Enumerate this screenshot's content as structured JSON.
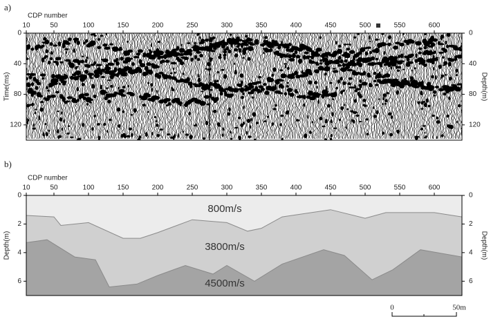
{
  "chart_data": [
    {
      "type": "seismic",
      "panel_label": "a)",
      "x_label": "CDP number",
      "y_label": "Time(ms)",
      "y2_label": "Depth(m)",
      "xlim": [
        10,
        640
      ],
      "xticks": [
        10,
        50,
        100,
        150,
        200,
        250,
        300,
        350,
        400,
        450,
        500,
        550,
        600
      ],
      "ylim": [
        0,
        140
      ],
      "yticks": [
        0,
        40,
        80,
        120
      ],
      "y2lim": [
        0,
        140
      ],
      "y2ticks": [
        0,
        40,
        80,
        120
      ]
    },
    {
      "type": "layers",
      "panel_label": "b)",
      "x_label": "CDP number",
      "y_label": "Depth(m)",
      "y2_label": "Depth(m)",
      "xlim": [
        10,
        640
      ],
      "xticks": [
        10,
        50,
        100,
        150,
        200,
        250,
        300,
        350,
        400,
        450,
        500,
        550,
        600
      ],
      "ylim": [
        7,
        0
      ],
      "yticks": [
        0,
        2,
        4,
        6
      ],
      "y2lim": [
        7,
        0
      ],
      "y2ticks": [
        0,
        2,
        4,
        6
      ],
      "colors": [
        "#ececec",
        "#d0d0d0",
        "#a4a4a4"
      ],
      "annotations": [
        "800m/s",
        "3800m/s",
        "4500m/s"
      ],
      "series": [
        {
          "color": "#8a8a8a",
          "x": [
            10,
            50,
            60,
            100,
            150,
            175,
            200,
            250,
            300,
            330,
            350,
            380,
            450,
            500,
            530,
            600,
            640
          ],
          "values": [
            1.4,
            1.5,
            2.1,
            1.9,
            3.0,
            3.0,
            2.6,
            1.7,
            1.9,
            2.5,
            2.3,
            1.5,
            1.0,
            1.6,
            1.2,
            1.2,
            1.5
          ]
        },
        {
          "color": "#8a8a8a",
          "x": [
            10,
            40,
            80,
            110,
            130,
            170,
            200,
            240,
            280,
            300,
            340,
            380,
            440,
            470,
            510,
            540,
            580,
            640
          ],
          "values": [
            3.3,
            3.1,
            4.3,
            4.5,
            6.4,
            6.2,
            5.6,
            4.9,
            5.5,
            4.9,
            6.0,
            4.8,
            3.8,
            4.2,
            5.9,
            5.2,
            3.8,
            4.3
          ]
        }
      ],
      "scale_bar": {
        "labels": [
          "0",
          "50m"
        ]
      }
    }
  ]
}
